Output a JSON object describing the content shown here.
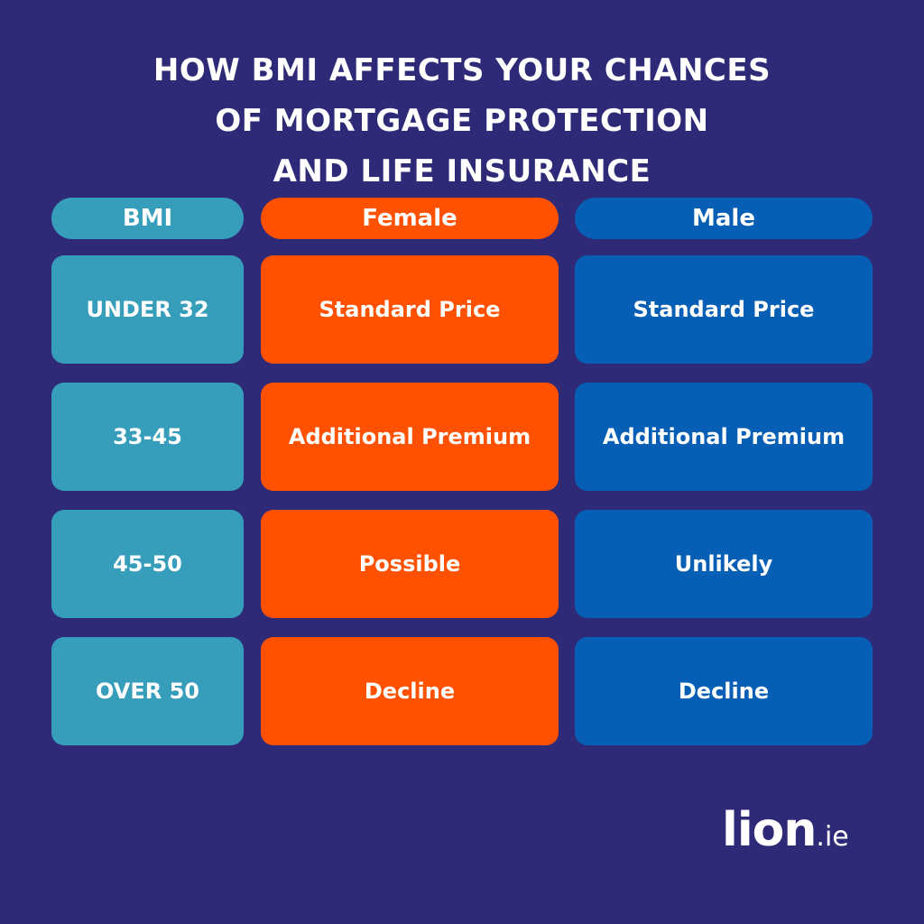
{
  "title_lines": [
    "HOW BMI AFFECTS YOUR CHANCES",
    "OF MORTGAGE PROTECTION",
    "AND LIFE INSURANCE"
  ],
  "headers": {
    "bmi": "BMI",
    "female": "Female",
    "male": "Male"
  },
  "rows": [
    {
      "bmi": "UNDER 32",
      "female": "Standard Price",
      "male": "Standard Price"
    },
    {
      "bmi": "33-45",
      "female": "Additional Premium",
      "male": "Additional Premium"
    },
    {
      "bmi": "45-50",
      "female": "Possible",
      "male": "Unlikely"
    },
    {
      "bmi": "OVER 50",
      "female": "Decline",
      "male": "Decline"
    }
  ],
  "logo": {
    "main": "lion",
    "tld": ".ie"
  },
  "colors": {
    "background": "#2e2a78",
    "bmi_column": "#369dbb",
    "female_column": "#ff5100",
    "male_column": "#065fb4",
    "text": "#ffffff"
  }
}
